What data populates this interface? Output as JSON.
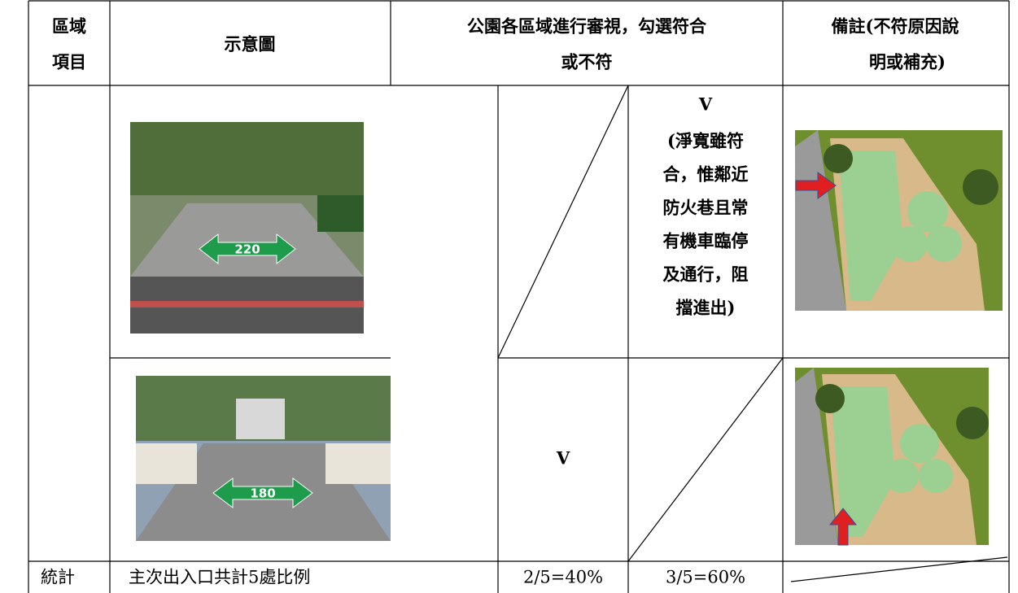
{
  "header": {
    "area_item": [
      "區域",
      "項目"
    ],
    "diagram": "示意圖",
    "review": [
      "公園各區域進行審視，勾選符合",
      "或不符"
    ],
    "remarks": [
      "備註(不符原因說",
      "明或補充)"
    ]
  },
  "rows": [
    {
      "photo_width_label": "220",
      "fail_mark": "V",
      "fail_note": [
        "(淨寬雖符",
        "合，惟鄰近",
        "防火巷且常",
        "有機車臨停",
        "及通行，阻",
        "擋進出)"
      ]
    },
    {
      "photo_width_label": "180",
      "pass_mark": "V"
    }
  ],
  "summary": {
    "label": "統計",
    "description": "主次出入口共計5處比例",
    "pass_ratio": "2/5=40%",
    "fail_ratio": "3/5=60%"
  }
}
